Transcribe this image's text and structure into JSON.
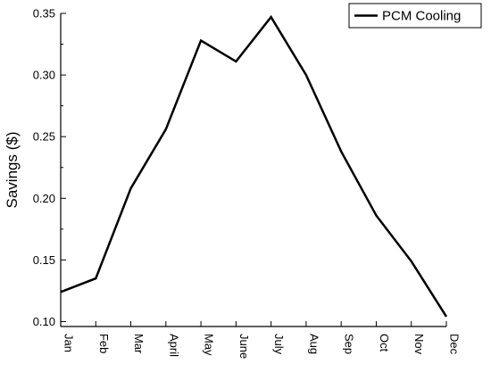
{
  "chart_data": {
    "type": "line",
    "title": "",
    "xlabel": "",
    "ylabel": "Savings ($)",
    "categories": [
      "Jan",
      "Feb",
      "Mar",
      "April",
      "May",
      "June",
      "July",
      "Aug",
      "Sep",
      "Oct",
      "Nov",
      "Dec"
    ],
    "series": [
      {
        "name": "PCM Cooling",
        "color": "#000000",
        "values": [
          0.124,
          0.135,
          0.208,
          0.256,
          0.328,
          0.311,
          0.347,
          0.3,
          0.238,
          0.186,
          0.149,
          0.104
        ]
      }
    ],
    "ylim": [
      0.096,
      0.35
    ],
    "yticks": [
      "0.10",
      "0.15",
      "0.20",
      "0.25",
      "0.30",
      "0.35"
    ],
    "grid": false,
    "legend_position": "top-right"
  }
}
